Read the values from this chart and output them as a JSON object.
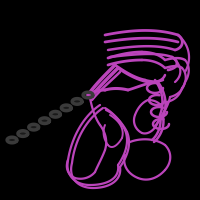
{
  "background_color": "#000000",
  "figsize": [
    2.0,
    2.0
  ],
  "dpi": 100,
  "protein_color": "#BB44BB",
  "helix_color": "#3a3a3a",
  "helix_color2": "#555555"
}
